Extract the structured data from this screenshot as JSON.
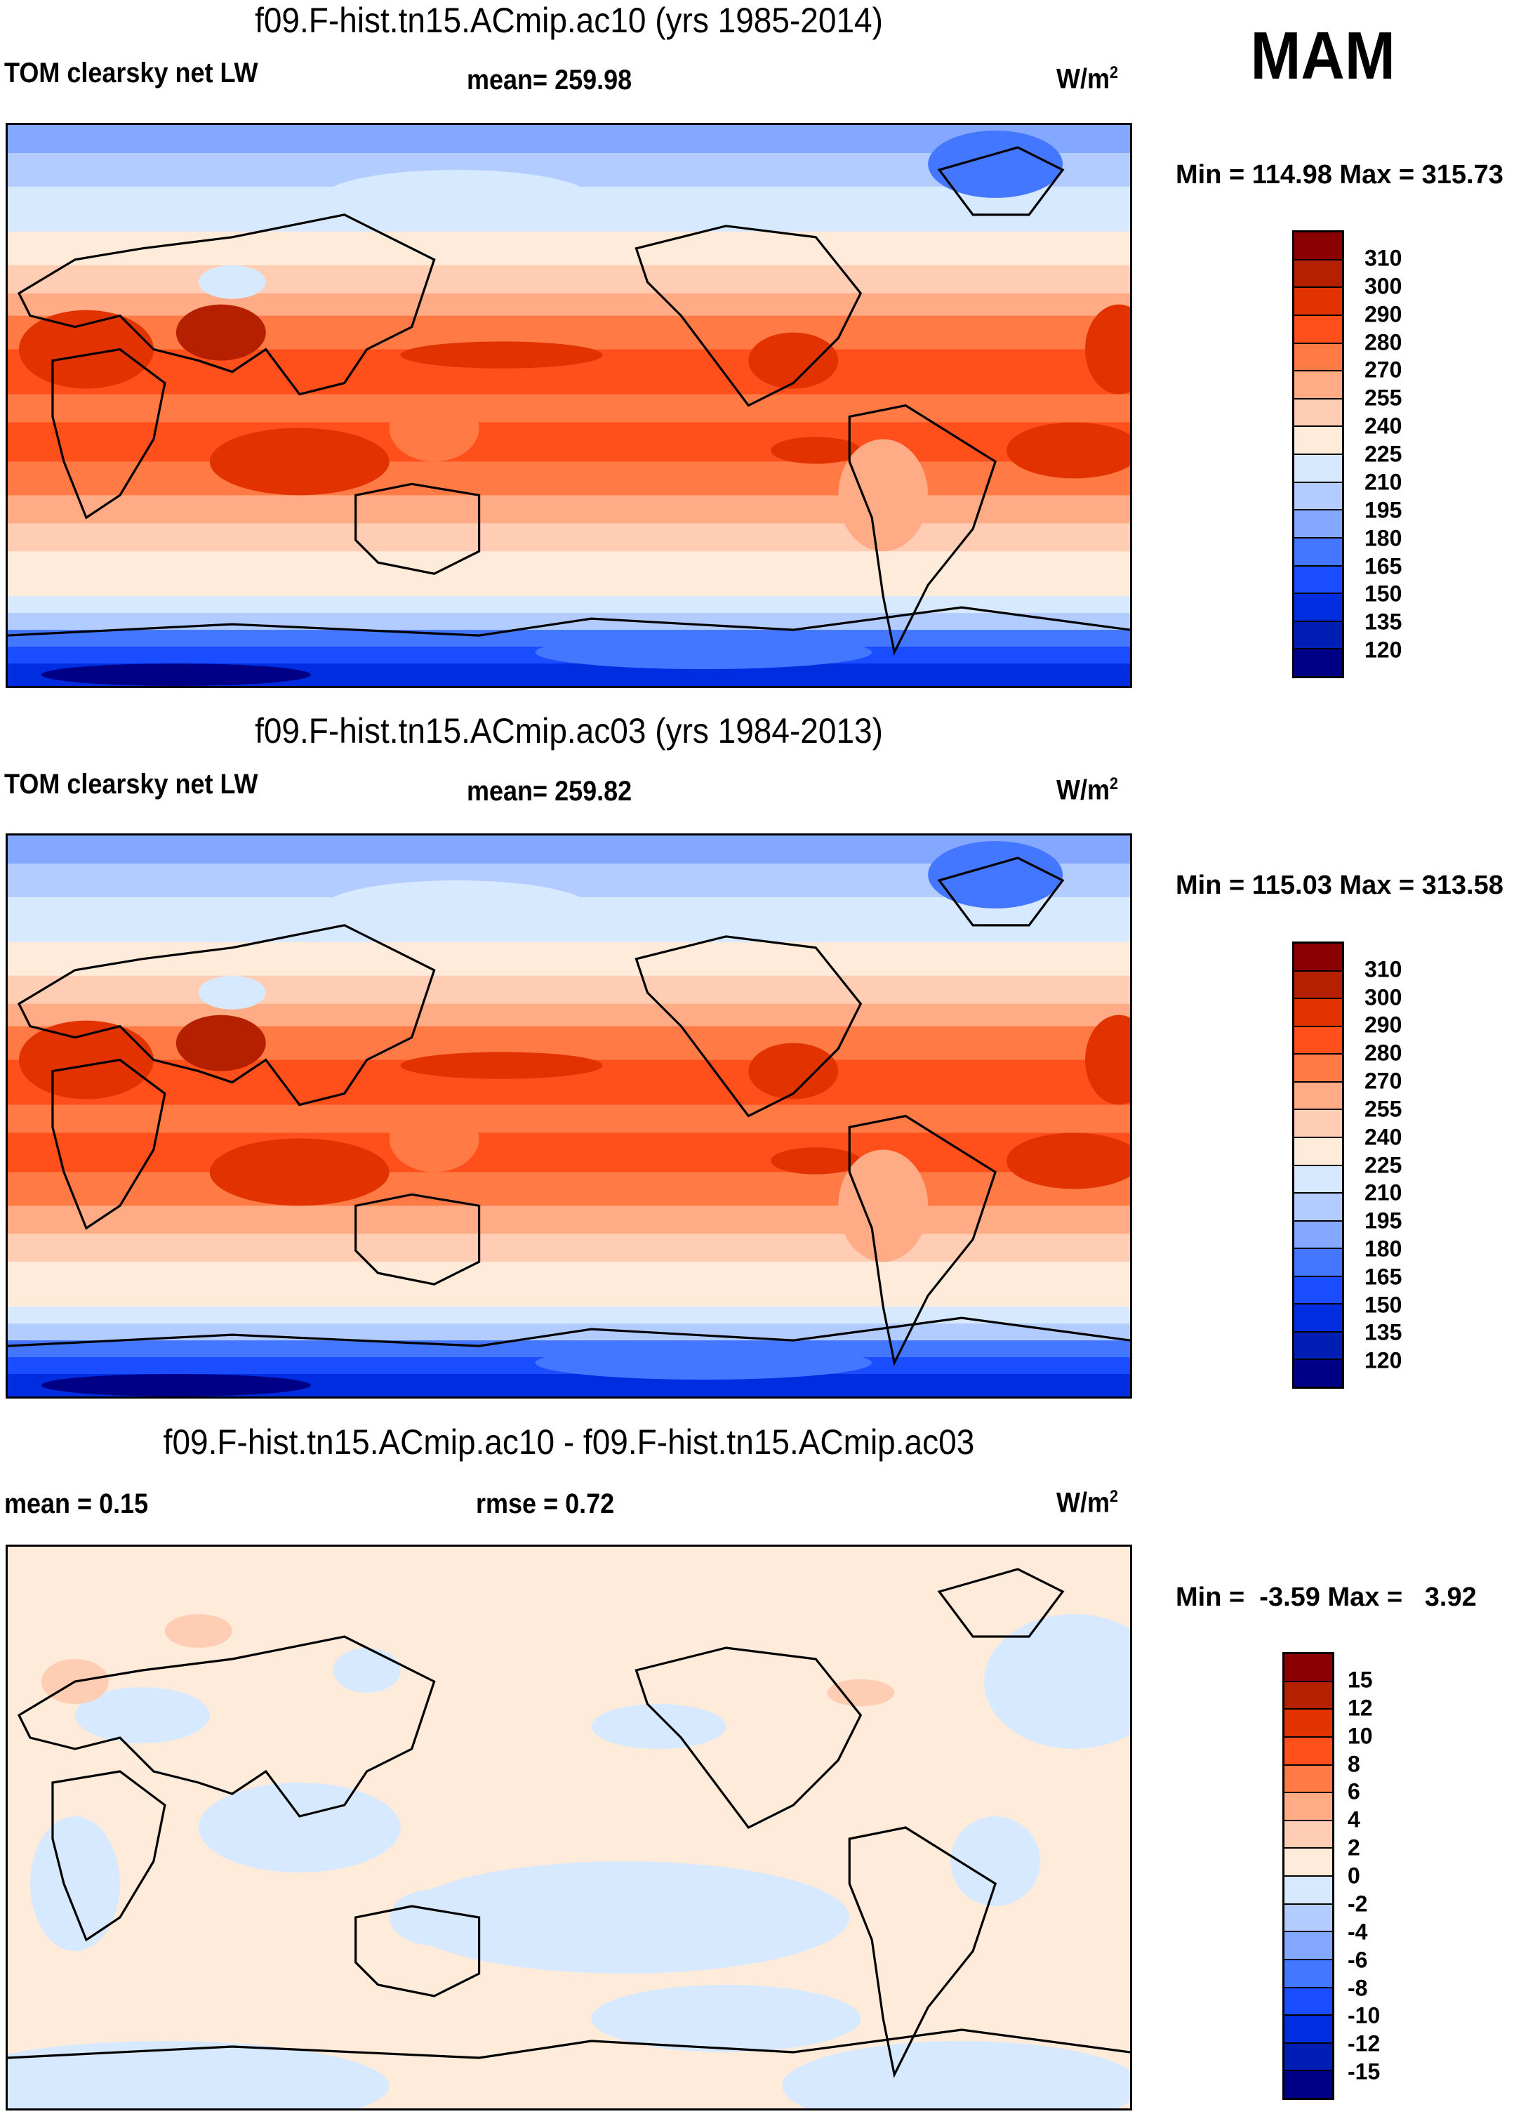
{
  "season": "MAM",
  "chart_data": [
    {
      "type": "heatmap",
      "title": "f09.F-hist.tn15.ACmip.ac10 (yrs 1985-2014)",
      "variable": "TOM clearsky net LW",
      "stat_label": "mean= 259.98",
      "units": "W/m",
      "units_sup": "2",
      "minmax": "Min = 114.98 Max = 315.73",
      "min": 114.98,
      "max": 315.73,
      "mean": 259.98,
      "levels": [
        "310",
        "300",
        "290",
        "280",
        "270",
        "255",
        "240",
        "225",
        "210",
        "195",
        "180",
        "165",
        "150",
        "135",
        "120"
      ]
    },
    {
      "type": "heatmap",
      "title": "f09.F-hist.tn15.ACmip.ac03 (yrs 1984-2013)",
      "variable": "TOM clearsky net LW",
      "stat_label": "mean= 259.82",
      "units": "W/m",
      "units_sup": "2",
      "minmax": "Min = 115.03 Max = 313.58",
      "min": 115.03,
      "max": 313.58,
      "mean": 259.82,
      "levels": [
        "310",
        "300",
        "290",
        "280",
        "270",
        "255",
        "240",
        "225",
        "210",
        "195",
        "180",
        "165",
        "150",
        "135",
        "120"
      ]
    },
    {
      "type": "heatmap",
      "title": "f09.F-hist.tn15.ACmip.ac10 - f09.F-hist.tn15.ACmip.ac03",
      "stat_label": "mean =   0.15",
      "stat2_label": "rmse =   0.72",
      "units": "W/m",
      "units_sup": "2",
      "minmax": "Min =  -3.59 Max =   3.92",
      "min": -3.59,
      "max": 3.92,
      "mean": 0.15,
      "rmse": 0.72,
      "levels": [
        "15",
        "12",
        "10",
        "8",
        "6",
        "4",
        "2",
        "0",
        "-2",
        "-4",
        "-6",
        "-8",
        "-10",
        "-12",
        "-15"
      ]
    }
  ],
  "colors": [
    "#8b0000",
    "#b52100",
    "#e23200",
    "#ff4f1a",
    "#ff7a45",
    "#ffab85",
    "#ffcdb4",
    "#ffebd9",
    "#d7e9ff",
    "#b3ccff",
    "#84a8ff",
    "#4477ff",
    "#1a4dff",
    "#002de0",
    "#001eb3",
    "#000087"
  ]
}
